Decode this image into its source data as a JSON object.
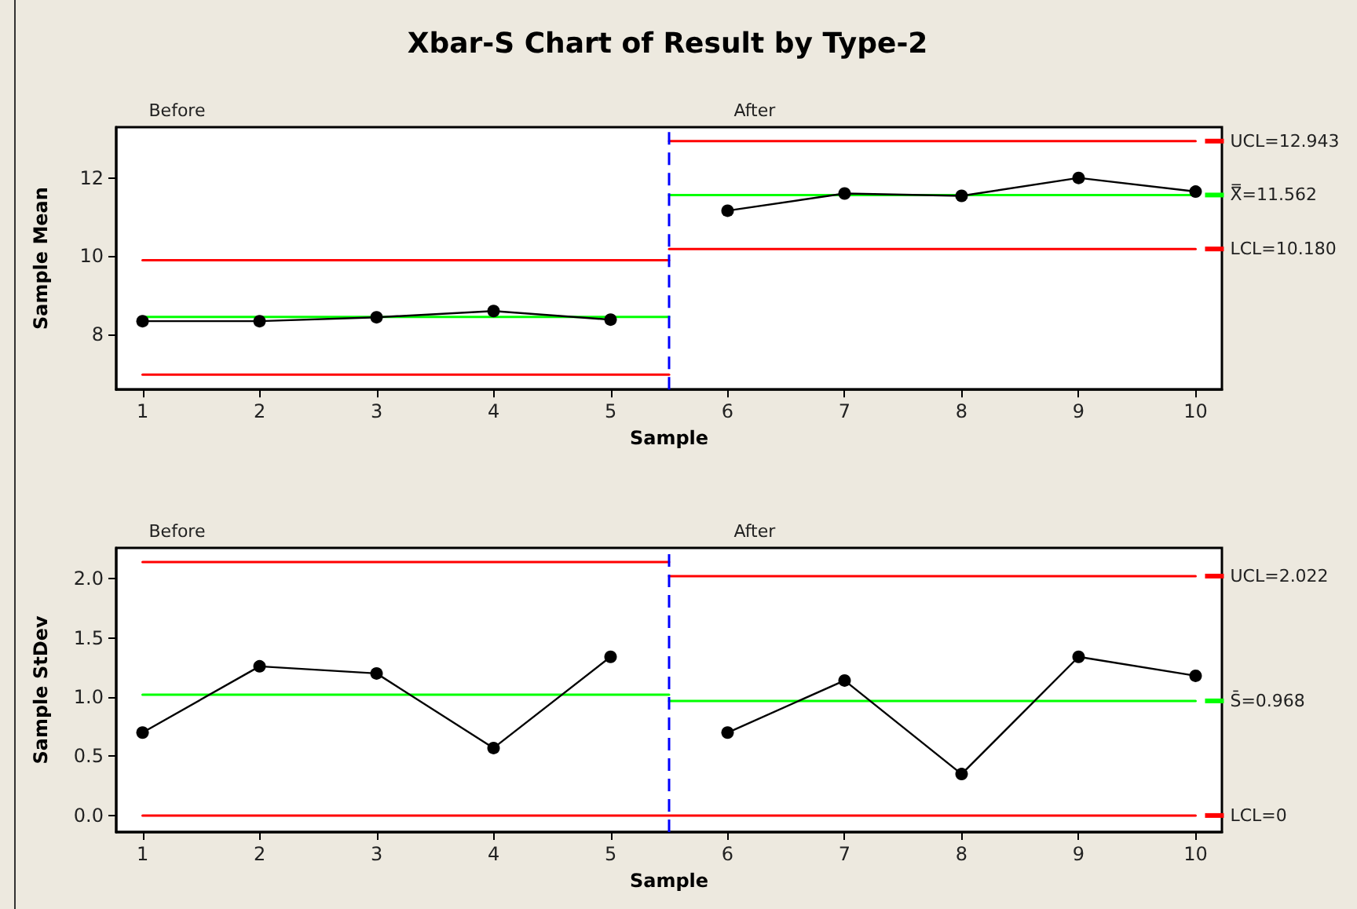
{
  "chart_data": [
    {
      "type": "line",
      "title": "Xbar-S Chart of Result by Type-2",
      "xlabel": "Sample",
      "ylabel": "Sample Mean",
      "xlim": [
        0.775,
        10.225
      ],
      "xticks": [
        1,
        2,
        3,
        4,
        5,
        6,
        7,
        8,
        9,
        10
      ],
      "ylim": [
        6.58,
        13.3
      ],
      "yticks": [
        8,
        10,
        12
      ],
      "grid": false,
      "legend": "right",
      "marker": "circle",
      "ref_lines": [
        {
          "axis": "x",
          "value": 5.5,
          "color": "#0000ff",
          "line_style": "dashed"
        }
      ],
      "series": [
        {
          "type": "line",
          "color": "#ff0000",
          "marker": "none",
          "x": [
            1,
            5.5
          ],
          "values": [
            9.89,
            9.89
          ]
        },
        {
          "type": "line",
          "color": "#00ff00",
          "marker": "none",
          "x": [
            1,
            5.5
          ],
          "values": [
            8.44,
            8.44
          ]
        },
        {
          "type": "line",
          "color": "#ff0000",
          "marker": "none",
          "x": [
            1,
            5.5
          ],
          "values": [
            6.96,
            6.96
          ]
        },
        {
          "type": "line",
          "name": "UCL=12.943",
          "color": "#ff0000",
          "marker": "none",
          "x": [
            5.5,
            10
          ],
          "values": [
            12.943,
            12.943
          ]
        },
        {
          "type": "line",
          "name": "X̿=11.562",
          "color": "#00ff00",
          "marker": "none",
          "x": [
            5.5,
            10
          ],
          "values": [
            11.562,
            11.562
          ]
        },
        {
          "type": "line",
          "name": "LCL=10.180",
          "color": "#ff0000",
          "marker": "none",
          "x": [
            5.5,
            10
          ],
          "values": [
            10.18,
            10.18
          ]
        },
        {
          "color": "#000000",
          "x": [
            1,
            2,
            3,
            4,
            5
          ],
          "values": [
            8.33,
            8.33,
            8.43,
            8.59,
            8.37
          ]
        },
        {
          "color": "#000000",
          "x": [
            6,
            7,
            8,
            9,
            10
          ],
          "values": [
            11.16,
            11.6,
            11.54,
            12.0,
            11.65
          ]
        }
      ],
      "annotations": [
        "Before",
        "After"
      ]
    },
    {
      "type": "line",
      "xlabel": "Sample",
      "ylabel": "Sample StDev",
      "xlim": [
        0.775,
        10.225
      ],
      "xticks": [
        1,
        2,
        3,
        4,
        5,
        6,
        7,
        8,
        9,
        10
      ],
      "ylim": [
        -0.14,
        2.26
      ],
      "yticks": [
        {
          "value": 0,
          "label": "0.0"
        },
        {
          "value": 0.5,
          "label": "0.5"
        },
        {
          "value": 1,
          "label": "1.0"
        },
        {
          "value": 1.5,
          "label": "1.5"
        },
        {
          "value": 2,
          "label": "2.0"
        }
      ],
      "grid": false,
      "legend": "right",
      "marker": "circle",
      "ref_lines": [
        {
          "axis": "x",
          "value": 5.5,
          "color": "#0000ff",
          "line_style": "dashed"
        }
      ],
      "series": [
        {
          "type": "line",
          "color": "#ff0000",
          "marker": "none",
          "x": [
            1,
            5.5
          ],
          "values": [
            2.14,
            2.14
          ]
        },
        {
          "type": "line",
          "color": "#00ff00",
          "marker": "none",
          "x": [
            1,
            5.5
          ],
          "values": [
            1.02,
            1.02
          ]
        },
        {
          "type": "line",
          "name": "UCL=2.022",
          "color": "#ff0000",
          "marker": "none",
          "x": [
            5.5,
            10
          ],
          "values": [
            2.022,
            2.022
          ]
        },
        {
          "type": "line",
          "name": "S̄=0.968",
          "color": "#00ff00",
          "marker": "none",
          "x": [
            5.5,
            10
          ],
          "values": [
            0.968,
            0.968
          ]
        },
        {
          "type": "line",
          "name": "LCL=0",
          "color": "#ff0000",
          "marker": "none",
          "x": [
            1,
            10
          ],
          "values": [
            0,
            0
          ]
        },
        {
          "color": "#000000",
          "x": [
            1,
            2,
            3,
            4,
            5
          ],
          "values": [
            0.7,
            1.26,
            1.2,
            0.57,
            1.34
          ]
        },
        {
          "color": "#000000",
          "x": [
            6,
            7,
            8,
            9,
            10
          ],
          "values": [
            0.7,
            1.14,
            0.35,
            1.34,
            1.18
          ]
        }
      ],
      "annotations": [
        "Before",
        "After"
      ]
    }
  ]
}
